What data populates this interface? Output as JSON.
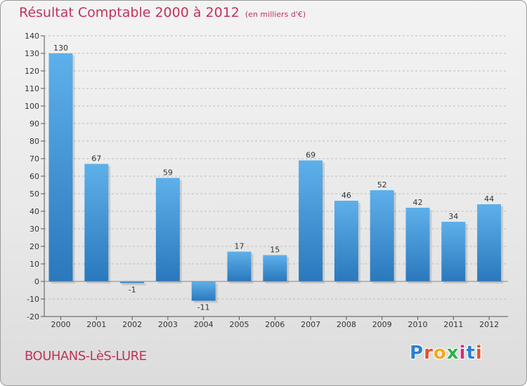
{
  "title": "Résultat Comptable 2000 à 2012",
  "subtitle": "(en milliers d'€)",
  "city": "BOUHANS-LèS-LURE",
  "logo": {
    "text": "Proxiti",
    "letter_colors": [
      "#2b7fd1",
      "#e4522c",
      "#f2a91b",
      "#2bb24c",
      "#d12e7a",
      "#2b7fd1",
      "#e4522c"
    ]
  },
  "colors": {
    "title": "#c0335a",
    "bar_top": "#5eb0ea",
    "bar_bottom": "#2a78bd",
    "axis": "#555555",
    "grid": "#bdbdbd"
  },
  "chart_data": {
    "type": "bar",
    "categories": [
      "2000",
      "2001",
      "2002",
      "2003",
      "2004",
      "2005",
      "2006",
      "2007",
      "2008",
      "2009",
      "2010",
      "2011",
      "2012"
    ],
    "values": [
      130,
      67,
      -1,
      59,
      -11,
      17,
      15,
      69,
      46,
      52,
      42,
      34,
      44
    ],
    "value_labels": [
      "130",
      "67",
      "-1",
      "59",
      "-11",
      "17",
      "15",
      "69",
      "46",
      "52",
      "42",
      "34",
      "44"
    ],
    "ylim": [
      -20,
      140
    ],
    "yticks": [
      -20,
      -10,
      0,
      10,
      20,
      30,
      40,
      50,
      60,
      70,
      80,
      90,
      100,
      110,
      120,
      130,
      140
    ],
    "ytick_labels": [
      "-20",
      "-10",
      "0",
      "10",
      "20",
      "30",
      "40",
      "50",
      "60",
      "70",
      "80",
      "90",
      "100",
      "110",
      "120",
      "130",
      "140"
    ],
    "grid": "horizontal dashed",
    "legend": "none"
  }
}
